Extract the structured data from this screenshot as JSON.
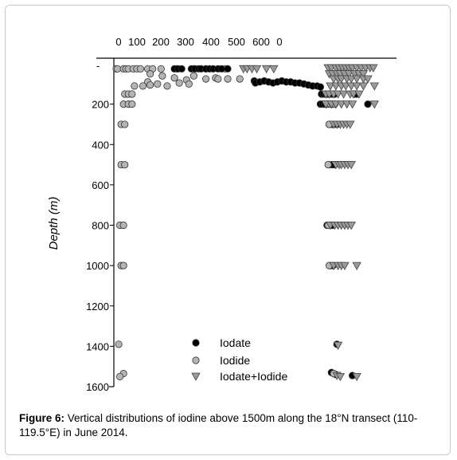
{
  "chart_data": {
    "type": "scatter",
    "title": "",
    "ylabel": "Depth (m)",
    "y_axis": {
      "ticks": [
        200,
        400,
        600,
        800,
        1000,
        1200,
        1400,
        1600
      ],
      "ylim": [
        0,
        1600
      ],
      "inverted": true,
      "tick_suffix": "-"
    },
    "x_axis_top": {
      "tick_labels": [
        "0",
        "100",
        "200",
        "300",
        "400",
        "500",
        "600",
        "0"
      ],
      "panel_a_xlim": [
        0,
        700
      ],
      "panel_b_xlim": [
        0,
        650
      ]
    },
    "legend": {
      "placement": "bottom-center",
      "entries": [
        "Iodate",
        "Iodide",
        "Iodate+Iodide"
      ]
    },
    "series": [
      {
        "name": "Iodide",
        "panel": "left",
        "marker": "circle",
        "color": "#b4b4b4",
        "points": [
          [
            10,
            25
          ],
          [
            15,
            25
          ],
          [
            40,
            25
          ],
          [
            50,
            25
          ],
          [
            60,
            25
          ],
          [
            80,
            25
          ],
          [
            95,
            25
          ],
          [
            110,
            25
          ],
          [
            140,
            25
          ],
          [
            160,
            25
          ],
          [
            195,
            25
          ],
          [
            260,
            25
          ],
          [
            330,
            25
          ],
          [
            380,
            25
          ],
          [
            460,
            25
          ],
          [
            150,
            50
          ],
          [
            200,
            60
          ],
          [
            250,
            70
          ],
          [
            300,
            80
          ],
          [
            330,
            60
          ],
          [
            380,
            75
          ],
          [
            420,
            70
          ],
          [
            430,
            75
          ],
          [
            470,
            75
          ],
          [
            520,
            75
          ],
          [
            140,
            90
          ],
          [
            180,
            100
          ],
          [
            220,
            110
          ],
          [
            270,
            95
          ],
          [
            310,
            100
          ],
          [
            85,
            110
          ],
          [
            120,
            110
          ],
          [
            150,
            105
          ],
          [
            45,
            150
          ],
          [
            60,
            150
          ],
          [
            75,
            150
          ],
          [
            40,
            200
          ],
          [
            60,
            200
          ],
          [
            75,
            200
          ],
          [
            30,
            300
          ],
          [
            45,
            300
          ],
          [
            30,
            500
          ],
          [
            45,
            500
          ],
          [
            25,
            800
          ],
          [
            40,
            800
          ],
          [
            30,
            1000
          ],
          [
            40,
            1000
          ],
          [
            20,
            1390
          ],
          [
            40,
            1535
          ],
          [
            25,
            1550
          ]
        ]
      },
      {
        "name": "Iodate",
        "panel": "left",
        "marker": "circle",
        "color": "#000000",
        "points": [
          [
            250,
            25
          ],
          [
            265,
            25
          ],
          [
            280,
            25
          ],
          [
            320,
            25
          ],
          [
            335,
            25
          ],
          [
            350,
            25
          ],
          [
            360,
            25
          ],
          [
            380,
            25
          ],
          [
            395,
            25
          ],
          [
            410,
            25
          ],
          [
            430,
            25
          ],
          [
            445,
            25
          ],
          [
            470,
            25
          ]
        ]
      },
      {
        "name": "Iodate+Iodide",
        "panel": "left",
        "marker": "triangle-down",
        "color": "#9a9a9a",
        "points": [
          [
            535,
            25
          ],
          [
            550,
            25
          ],
          [
            570,
            25
          ],
          [
            590,
            25
          ],
          [
            630,
            25
          ],
          [
            660,
            25
          ]
        ]
      },
      {
        "name": "Iodate",
        "panel": "right",
        "marker": "circle",
        "color": "#000000",
        "points": [
          [
            5,
            85
          ],
          [
            10,
            95
          ],
          [
            30,
            90
          ],
          [
            50,
            85
          ],
          [
            70,
            90
          ],
          [
            90,
            95
          ],
          [
            110,
            90
          ],
          [
            130,
            85
          ],
          [
            150,
            90
          ],
          [
            170,
            90
          ],
          [
            190,
            95
          ],
          [
            210,
            95
          ],
          [
            230,
            100
          ],
          [
            250,
            105
          ],
          [
            270,
            110
          ],
          [
            290,
            110
          ],
          [
            305,
            115
          ],
          [
            310,
            150
          ],
          [
            320,
            150
          ],
          [
            330,
            150
          ],
          [
            340,
            150
          ],
          [
            350,
            150
          ],
          [
            360,
            150
          ],
          [
            370,
            150
          ],
          [
            305,
            200
          ],
          [
            315,
            200
          ],
          [
            325,
            200
          ],
          [
            335,
            200
          ],
          [
            345,
            300
          ],
          [
            355,
            300
          ],
          [
            365,
            300
          ],
          [
            380,
            300
          ],
          [
            345,
            500
          ],
          [
            358,
            500
          ],
          [
            370,
            500
          ],
          [
            335,
            800
          ],
          [
            348,
            800
          ],
          [
            360,
            800
          ],
          [
            350,
            1000
          ],
          [
            362,
            1000
          ],
          [
            380,
            1390
          ],
          [
            355,
            1530
          ],
          [
            365,
            1535
          ],
          [
            375,
            1540
          ],
          [
            450,
            1545
          ],
          [
            460,
            150
          ],
          [
            470,
            150
          ],
          [
            520,
            200
          ]
        ]
      },
      {
        "name": "Iodide",
        "panel": "right",
        "marker": "circle",
        "color": "#b4b4b4",
        "points": [
          [
            340,
            200
          ],
          [
            350,
            200
          ],
          [
            360,
            200
          ],
          [
            370,
            200
          ],
          [
            345,
            300
          ],
          [
            340,
            500
          ],
          [
            340,
            800
          ],
          [
            345,
            1000
          ],
          [
            365,
            1535
          ]
        ]
      },
      {
        "name": "Iodate+Iodide",
        "panel": "right",
        "marker": "triangle-down",
        "color": "#9a9a9a",
        "points": [
          [
            340,
            20
          ],
          [
            355,
            20
          ],
          [
            375,
            20
          ],
          [
            390,
            20
          ],
          [
            405,
            20
          ],
          [
            420,
            20
          ],
          [
            435,
            20
          ],
          [
            450,
            20
          ],
          [
            470,
            20
          ],
          [
            490,
            20
          ],
          [
            510,
            20
          ],
          [
            530,
            20
          ],
          [
            545,
            20
          ],
          [
            345,
            50
          ],
          [
            360,
            50
          ],
          [
            380,
            50
          ],
          [
            395,
            50
          ],
          [
            415,
            50
          ],
          [
            435,
            50
          ],
          [
            460,
            50
          ],
          [
            480,
            50
          ],
          [
            500,
            50
          ],
          [
            365,
            75
          ],
          [
            385,
            75
          ],
          [
            400,
            75
          ],
          [
            425,
            75
          ],
          [
            445,
            75
          ],
          [
            470,
            75
          ],
          [
            500,
            75
          ],
          [
            520,
            75
          ],
          [
            350,
            110
          ],
          [
            375,
            110
          ],
          [
            400,
            110
          ],
          [
            420,
            110
          ],
          [
            445,
            110
          ],
          [
            470,
            110
          ],
          [
            500,
            110
          ],
          [
            550,
            110
          ],
          [
            330,
            150
          ],
          [
            345,
            150
          ],
          [
            365,
            150
          ],
          [
            385,
            150
          ],
          [
            410,
            150
          ],
          [
            440,
            150
          ],
          [
            455,
            150
          ],
          [
            480,
            150
          ],
          [
            330,
            200
          ],
          [
            355,
            200
          ],
          [
            375,
            200
          ],
          [
            400,
            200
          ],
          [
            425,
            200
          ],
          [
            450,
            200
          ],
          [
            550,
            200
          ],
          [
            365,
            300
          ],
          [
            380,
            300
          ],
          [
            395,
            300
          ],
          [
            410,
            300
          ],
          [
            425,
            300
          ],
          [
            440,
            300
          ],
          [
            375,
            500
          ],
          [
            390,
            500
          ],
          [
            400,
            500
          ],
          [
            415,
            500
          ],
          [
            430,
            500
          ],
          [
            445,
            500
          ],
          [
            350,
            800
          ],
          [
            370,
            800
          ],
          [
            385,
            800
          ],
          [
            400,
            800
          ],
          [
            415,
            800
          ],
          [
            430,
            800
          ],
          [
            445,
            800
          ],
          [
            365,
            1000
          ],
          [
            385,
            1000
          ],
          [
            400,
            1000
          ],
          [
            415,
            1000
          ],
          [
            470,
            1000
          ],
          [
            385,
            1395
          ],
          [
            380,
            1545
          ],
          [
            395,
            1550
          ],
          [
            470,
            1550
          ]
        ]
      }
    ]
  },
  "caption": {
    "label": "Figure 6:",
    "text": " Vertical distributions of iodine above 1500m along the 18°N transect (110-119.5°E) in June 2014."
  }
}
